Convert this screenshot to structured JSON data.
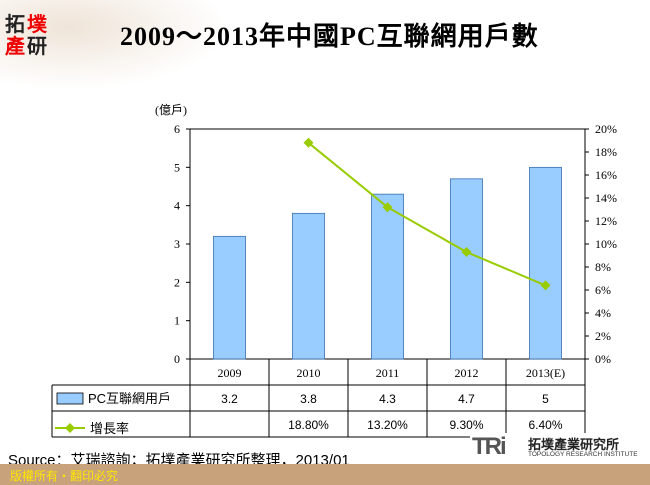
{
  "logo_text": "拓墣產研",
  "chart_data": {
    "type": "bar",
    "title": "2009～2013年中國PC互聯網用戶數",
    "ylabel": "(億戶)",
    "categories": [
      "2009",
      "2010",
      "2011",
      "2012",
      "2013(E)"
    ],
    "ylim": [
      0,
      6
    ],
    "yticks": [
      0,
      1,
      2,
      3,
      4,
      5,
      6
    ],
    "y2lim": [
      0,
      20
    ],
    "y2ticks": [
      "0%",
      "2%",
      "4%",
      "6%",
      "8%",
      "10%",
      "12%",
      "14%",
      "16%",
      "18%",
      "20%"
    ],
    "series": [
      {
        "name": "PC互聯網用戶",
        "type": "bar",
        "values": [
          3.2,
          3.8,
          4.3,
          4.7,
          5
        ],
        "labels": [
          "3.2",
          "3.8",
          "4.3",
          "4.7",
          "5"
        ],
        "color": "#99ccff"
      },
      {
        "name": "增長率",
        "type": "line",
        "axis": "right",
        "values": [
          null,
          18.8,
          13.2,
          9.3,
          6.4
        ],
        "labels": [
          "",
          "18.80%",
          "13.20%",
          "9.30%",
          "6.40%"
        ],
        "color": "#99cc00"
      }
    ]
  },
  "source": "Source：艾瑞諮詢；拓墣產業研究所整理，2013/01",
  "copyright": "版權所有‧翻印必究",
  "brand": {
    "mark": "TRi",
    "name_cn": "拓墣產業研究所",
    "name_en": "TOPOLOGY RESEARCH INSTITUTE"
  }
}
